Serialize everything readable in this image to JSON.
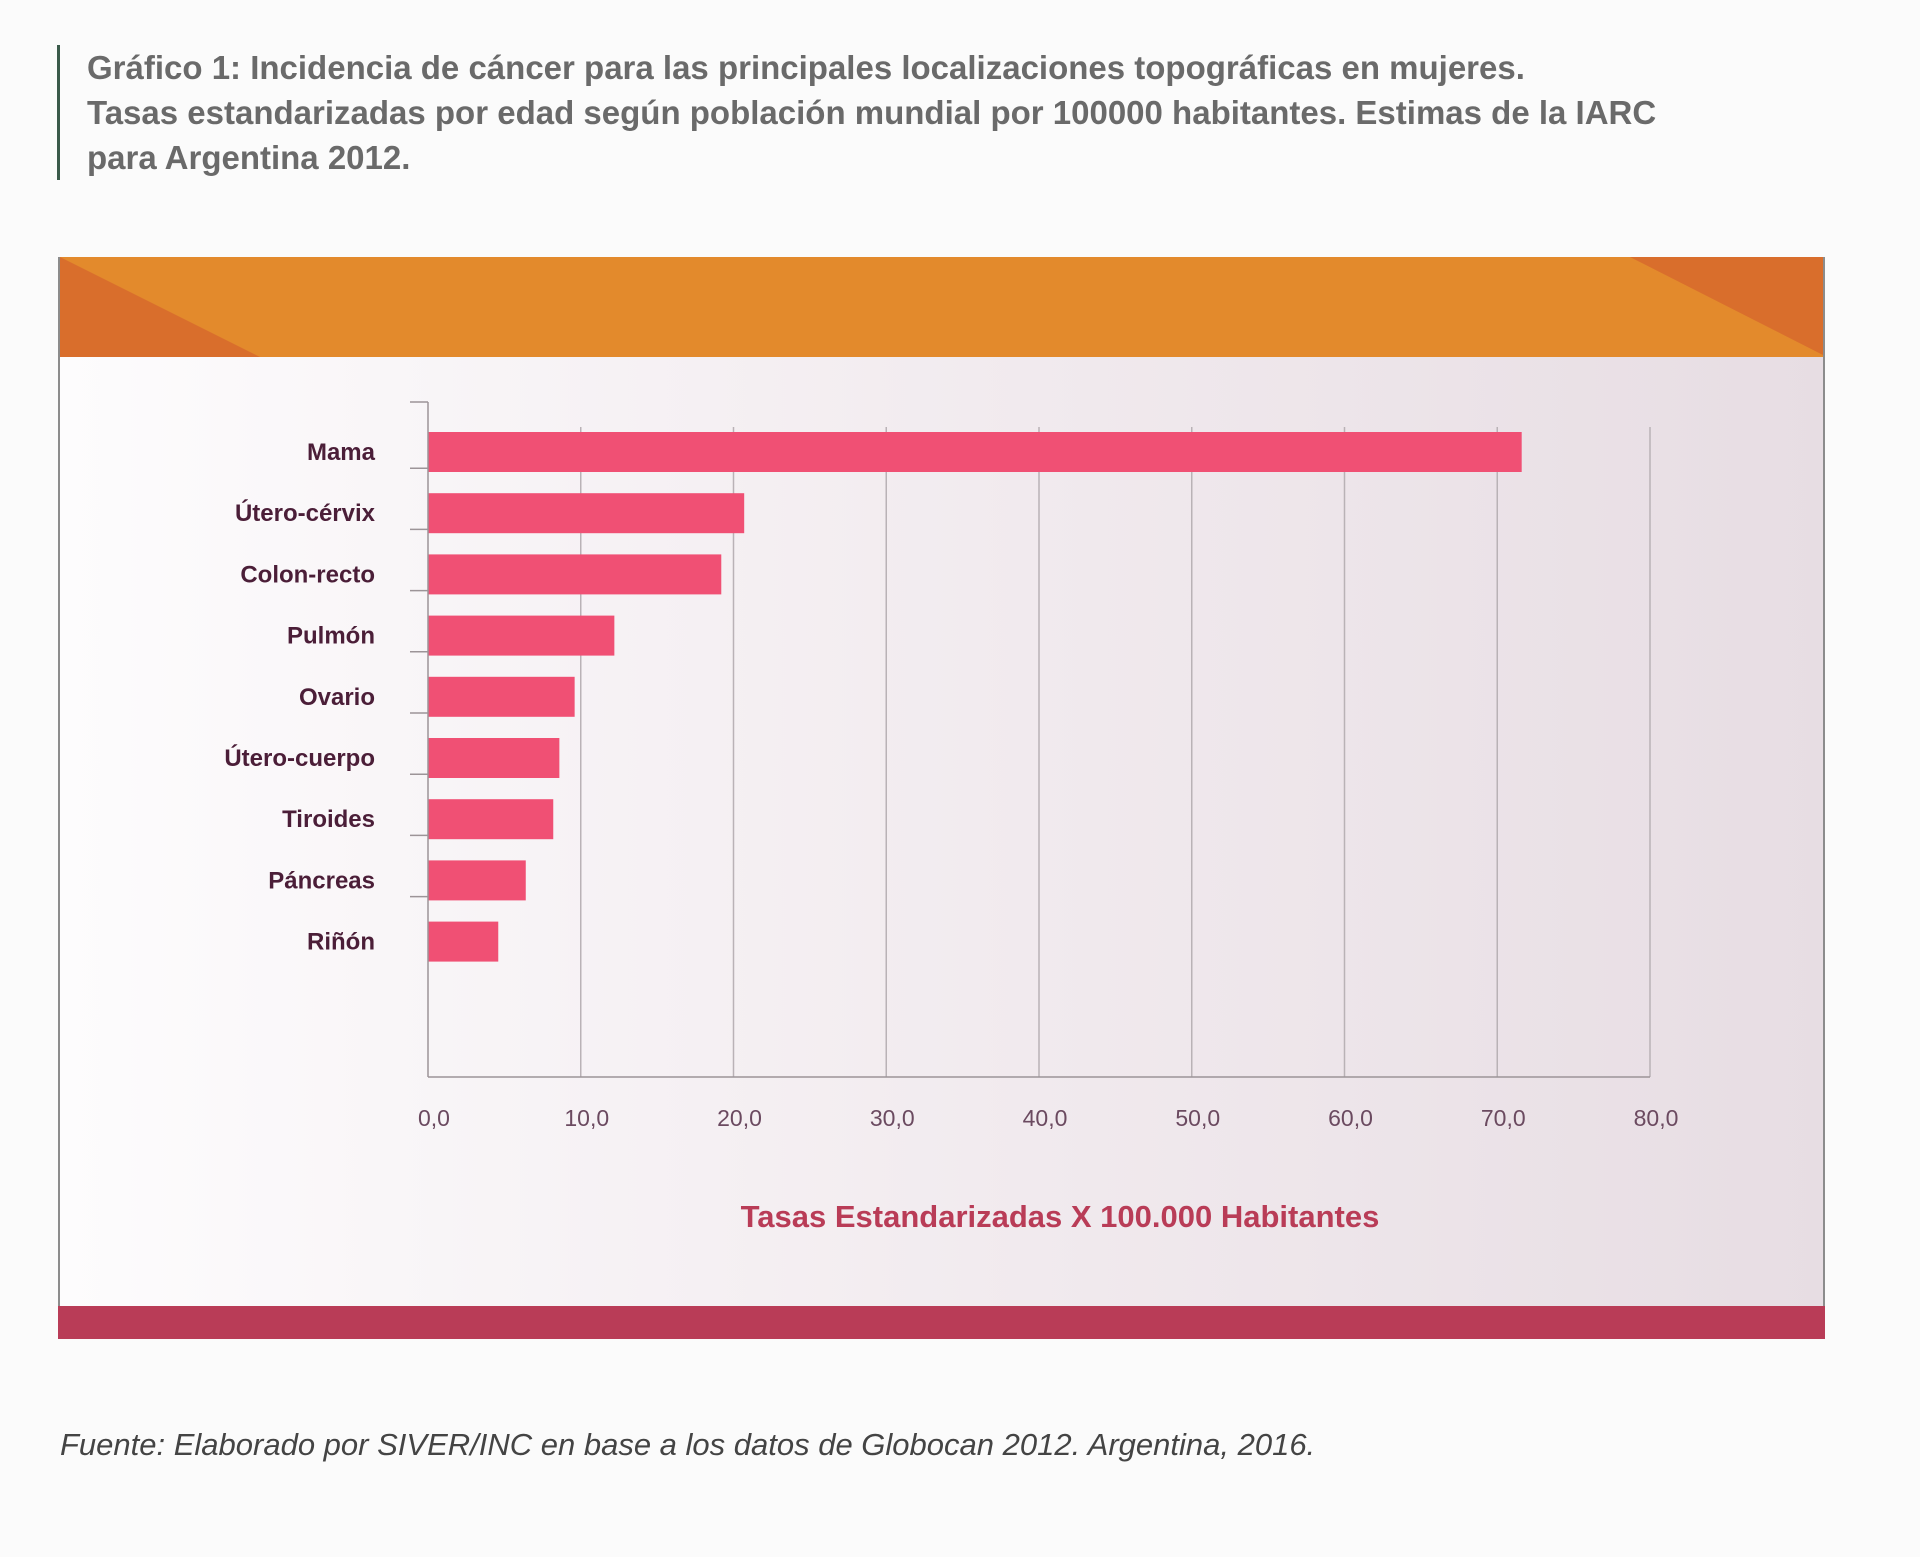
{
  "title_lines": [
    "Gráfico 1: Incidencia de cáncer para las principales localizaciones topográficas en mujeres.",
    "Tasas estandarizadas por edad según población mundial por 100000 habitantes. Estimas de la IARC",
    "para Argentina 2012."
  ],
  "source": "Fuente: Elaborado por SIVER/INC en base a los datos de Globocan 2012. Argentina, 2016.",
  "colors": {
    "bar": "#f05074",
    "top_band": "#e38a2c",
    "top_band_corner": "#d96e2c",
    "bottom_band": "#b93c57",
    "axis_title": "#b93c57"
  },
  "chart_data": {
    "type": "bar",
    "orientation": "horizontal",
    "categories": [
      "Mama",
      "Útero-cérvix",
      "Colon-recto",
      "Pulmón",
      "Ovario",
      "Útero-cuerpo",
      "Tiroides",
      "Páncreas",
      "Riñón"
    ],
    "values": [
      71.6,
      20.7,
      19.2,
      12.2,
      9.6,
      8.6,
      8.2,
      6.4,
      4.6
    ],
    "xlabel": "Tasas Estandarizadas X 100.000 Habitantes",
    "xlim": [
      0,
      80
    ],
    "xticks": [
      "0,0",
      "10,0",
      "20,0",
      "30,0",
      "40,0",
      "50,0",
      "60,0",
      "70,0",
      "80,0"
    ],
    "grid": "vertical"
  }
}
